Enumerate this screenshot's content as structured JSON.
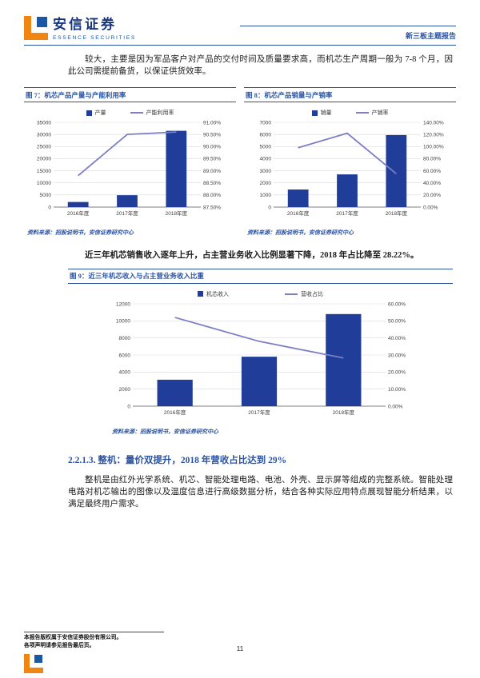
{
  "header": {
    "brand_cn": "安信证券",
    "brand_en": "ESSENCE SECURITIES",
    "report_type": "新三板主题报告"
  },
  "paragraphs": {
    "p1": "较大，主要是因为军品客户对产品的交付时间及质量要求高，而机芯生产周期一般为 7-8 个月，因此公司需提前备货，以保证供货效率。",
    "key_finding": "近三年机芯销售收入逐年上升，占主营业务收入比例显著下降，2018 年占比降至 28.22%。",
    "section_heading": "2.2.1.3. 整机：量价双提升，2018 年营收占比达到 29%",
    "p3": "整机是由红外光学系统、机芯、智能处理电路、电池、外壳、显示屏等组成的完整系统。智能处理电路对机芯输出的图像以及温度信息进行高级数据分析，结合各种实际应用特点展现智能分析结果，以满足最终用户需求。"
  },
  "figures": {
    "fig7": {
      "title": "图 7：机芯产品产量与产能利用率",
      "source": "资料来源：招股说明书，安信证券研究中心"
    },
    "fig8": {
      "title": "图 8：机芯产品销量与产销率",
      "source": "资料来源：招股说明书，安信证券研究中心"
    },
    "fig9": {
      "title": "图 9：近三年机芯收入与占主营业务收入比重",
      "source": "资料来源：招股说明书，安信证券研究中心"
    }
  },
  "footer": {
    "line1": "本报告版权属于安信证券股份有限公司。",
    "line2": "各项声明请参见报告最后页。",
    "page_number": "11"
  },
  "colors": {
    "accent": "#2a52a2",
    "bar": "#1f3d99",
    "line": "#7b7fc4",
    "logo_orange": "#f08511",
    "logo_blue": "#1c57a5"
  },
  "chart_data": [
    {
      "id": "fig7",
      "type": "bar",
      "title": "机芯产品产量与产能利用率",
      "categories": [
        "2016年度",
        "2017年度",
        "2018年度"
      ],
      "series": [
        {
          "name": "产量",
          "type": "bar",
          "axis": "left",
          "values": [
            2100,
            4900,
            31500
          ]
        },
        {
          "name": "产能利用率",
          "type": "line",
          "axis": "right",
          "unit": "%",
          "values": [
            88.8,
            90.5,
            90.6
          ]
        }
      ],
      "left_axis": {
        "min": 0,
        "max": 35000,
        "step": 5000
      },
      "right_axis": {
        "min": 87.5,
        "max": 91.0,
        "step": 0.5,
        "format": "percent"
      },
      "grid": true,
      "legend_position": "top"
    },
    {
      "id": "fig8",
      "type": "bar",
      "title": "机芯产品销量与产销率",
      "categories": [
        "2016年度",
        "2017年度",
        "2018年度"
      ],
      "series": [
        {
          "name": "销量",
          "type": "bar",
          "axis": "left",
          "values": [
            1450,
            2700,
            5950
          ]
        },
        {
          "name": "产销率",
          "type": "line",
          "axis": "right",
          "unit": "%",
          "values": [
            98,
            122,
            55
          ]
        }
      ],
      "left_axis": {
        "min": 0,
        "max": 7000,
        "step": 1000
      },
      "right_axis": {
        "min": 0,
        "max": 140,
        "step": 20,
        "format": "percent"
      },
      "grid": true,
      "legend_position": "top"
    },
    {
      "id": "fig9",
      "type": "bar",
      "title": "近三年机芯收入与占主营业务收入比重",
      "categories": [
        "2016年度",
        "2017年度",
        "2018年度"
      ],
      "series": [
        {
          "name": "机芯收入",
          "type": "bar",
          "axis": "left",
          "values": [
            3100,
            5800,
            10800
          ]
        },
        {
          "name": "营收占比",
          "type": "line",
          "axis": "right",
          "unit": "%",
          "values": [
            52,
            38,
            28.22
          ]
        }
      ],
      "left_axis": {
        "min": 0,
        "max": 12000,
        "step": 2000
      },
      "right_axis": {
        "min": 0,
        "max": 60,
        "step": 10,
        "format": "percent"
      },
      "grid": true,
      "legend_position": "top"
    }
  ]
}
